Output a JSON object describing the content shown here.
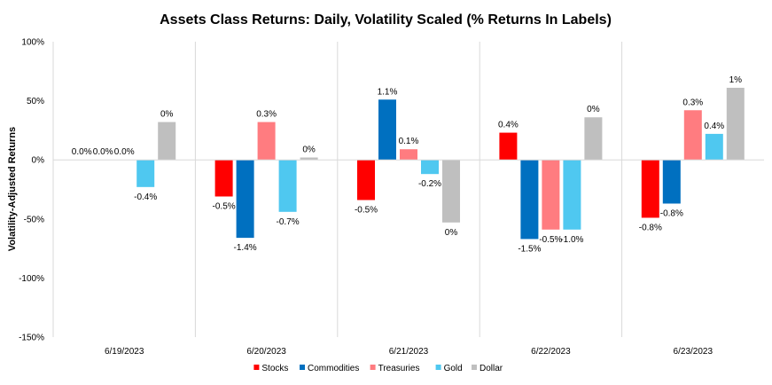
{
  "chart_data": {
    "type": "bar",
    "title": "Assets Class Returns: Daily, Volatility Scaled (% Returns In Labels)",
    "ylabel": "Volatility-Adjusted Returns",
    "xlabel": "",
    "ylim": [
      -150,
      100
    ],
    "yticks": [
      100,
      50,
      0,
      -50,
      -100,
      -150
    ],
    "ytick_labels": [
      "100%",
      "50%",
      "0%",
      "-50%",
      "-100%",
      "-150%"
    ],
    "categories": [
      "6/19/2023",
      "6/20/2023",
      "6/21/2023",
      "6/22/2023",
      "6/23/2023"
    ],
    "legend_position": "bottom",
    "series": [
      {
        "name": "Stocks",
        "color": "#ff0000",
        "values": [
          0,
          -31,
          -34,
          23,
          -49
        ],
        "labels": [
          "0.0%",
          "-0.5%",
          "-0.5%",
          "0.4%",
          "-0.8%"
        ]
      },
      {
        "name": "Commodities",
        "color": "#0070c0",
        "values": [
          0,
          -66,
          51,
          -67,
          -37
        ],
        "labels": [
          "0.0%",
          "-1.4%",
          "1.1%",
          "-1.5%",
          "-0.8%"
        ]
      },
      {
        "name": "Treasuries",
        "color": "#ff7c80",
        "values": [
          0,
          32,
          9,
          -59,
          42
        ],
        "labels": [
          "0.0%",
          "0.3%",
          "0.1%",
          "-0.5%",
          "0.3%"
        ]
      },
      {
        "name": "Gold",
        "color": "#4fc8f0",
        "values": [
          -23,
          -44,
          -12,
          -59,
          22
        ],
        "labels": [
          "-0.4%",
          "-0.7%",
          "-0.2%",
          "-1.0%",
          "0.4%"
        ]
      },
      {
        "name": "Dollar",
        "color": "#bfbfbf",
        "values": [
          32,
          2,
          -53,
          36,
          61
        ],
        "labels": [
          "0%",
          "0%",
          "0%",
          "0%",
          "1%"
        ]
      }
    ]
  }
}
